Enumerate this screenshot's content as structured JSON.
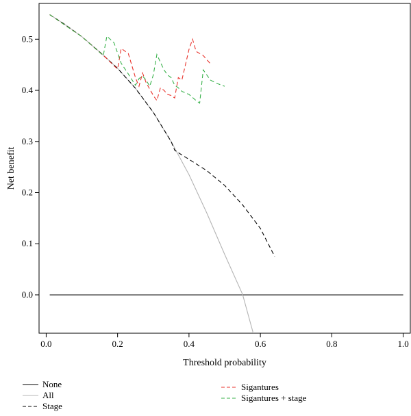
{
  "chart_data": {
    "type": "line",
    "title": "",
    "xlabel": "Threshold probability",
    "ylabel": "Net benefit",
    "xlim": [
      -0.02,
      1.02
    ],
    "ylim": [
      -0.075,
      0.57
    ],
    "x_ticks": [
      0.0,
      0.2,
      0.4,
      0.6,
      0.8,
      1.0
    ],
    "x_tick_labels": [
      "0.0",
      "0.2",
      "0.4",
      "0.6",
      "0.8",
      "1.0"
    ],
    "y_ticks": [
      0.0,
      0.1,
      0.2,
      0.3,
      0.4,
      0.5
    ],
    "y_tick_labels": [
      "0.0",
      "0.1",
      "0.2",
      "0.3",
      "0.4",
      "0.5"
    ],
    "grid": false,
    "legend_placement": "bottom",
    "series": [
      {
        "name": "None",
        "color": "#000000",
        "style": "solid",
        "x": [
          0.01,
          1.0
        ],
        "y": [
          0.0,
          0.0
        ]
      },
      {
        "name": "All",
        "color": "#b4b4b4",
        "style": "solid",
        "x": [
          0.01,
          0.05,
          0.1,
          0.15,
          0.2,
          0.25,
          0.3,
          0.35,
          0.4,
          0.45,
          0.5,
          0.55,
          0.58
        ],
        "y": [
          0.548,
          0.53,
          0.505,
          0.475,
          0.443,
          0.404,
          0.357,
          0.3,
          0.235,
          0.16,
          0.079,
          0.001,
          -0.075
        ]
      },
      {
        "name": "Stage",
        "color": "#000000",
        "style": "dashed",
        "x": [
          0.01,
          0.05,
          0.1,
          0.15,
          0.2,
          0.25,
          0.3,
          0.35,
          0.36,
          0.37,
          0.4,
          0.45,
          0.5,
          0.55,
          0.6,
          0.64
        ],
        "y": [
          0.548,
          0.53,
          0.505,
          0.475,
          0.443,
          0.404,
          0.357,
          0.3,
          0.283,
          0.278,
          0.265,
          0.243,
          0.214,
          0.176,
          0.13,
          0.075
        ]
      },
      {
        "name": "Sigantures",
        "color": "#e8322b",
        "style": "dashed",
        "x": [
          0.01,
          0.1,
          0.17,
          0.19,
          0.2,
          0.21,
          0.23,
          0.25,
          0.26,
          0.27,
          0.28,
          0.3,
          0.31,
          0.32,
          0.33,
          0.34,
          0.35,
          0.36,
          0.37,
          0.38,
          0.39,
          0.4,
          0.41,
          0.42,
          0.43,
          0.44,
          0.45,
          0.46
        ],
        "y": [
          0.548,
          0.505,
          0.462,
          0.448,
          0.442,
          0.482,
          0.472,
          0.425,
          0.408,
          0.434,
          0.415,
          0.39,
          0.38,
          0.405,
          0.4,
          0.392,
          0.39,
          0.385,
          0.425,
          0.42,
          0.45,
          0.48,
          0.5,
          0.476,
          0.472,
          0.468,
          0.46,
          0.452
        ]
      },
      {
        "name": "Sigantures + stage",
        "color": "#38b14a",
        "style": "dashed",
        "x": [
          0.01,
          0.1,
          0.16,
          0.17,
          0.19,
          0.21,
          0.23,
          0.25,
          0.26,
          0.27,
          0.28,
          0.29,
          0.3,
          0.31,
          0.32,
          0.33,
          0.34,
          0.35,
          0.36,
          0.37,
          0.38,
          0.4,
          0.42,
          0.43,
          0.44,
          0.45,
          0.46,
          0.48,
          0.5
        ],
        "y": [
          0.548,
          0.505,
          0.468,
          0.506,
          0.493,
          0.453,
          0.432,
          0.41,
          0.423,
          0.428,
          0.42,
          0.408,
          0.43,
          0.47,
          0.455,
          0.44,
          0.43,
          0.425,
          0.41,
          0.405,
          0.398,
          0.392,
          0.38,
          0.375,
          0.44,
          0.43,
          0.42,
          0.413,
          0.408
        ]
      }
    ]
  }
}
